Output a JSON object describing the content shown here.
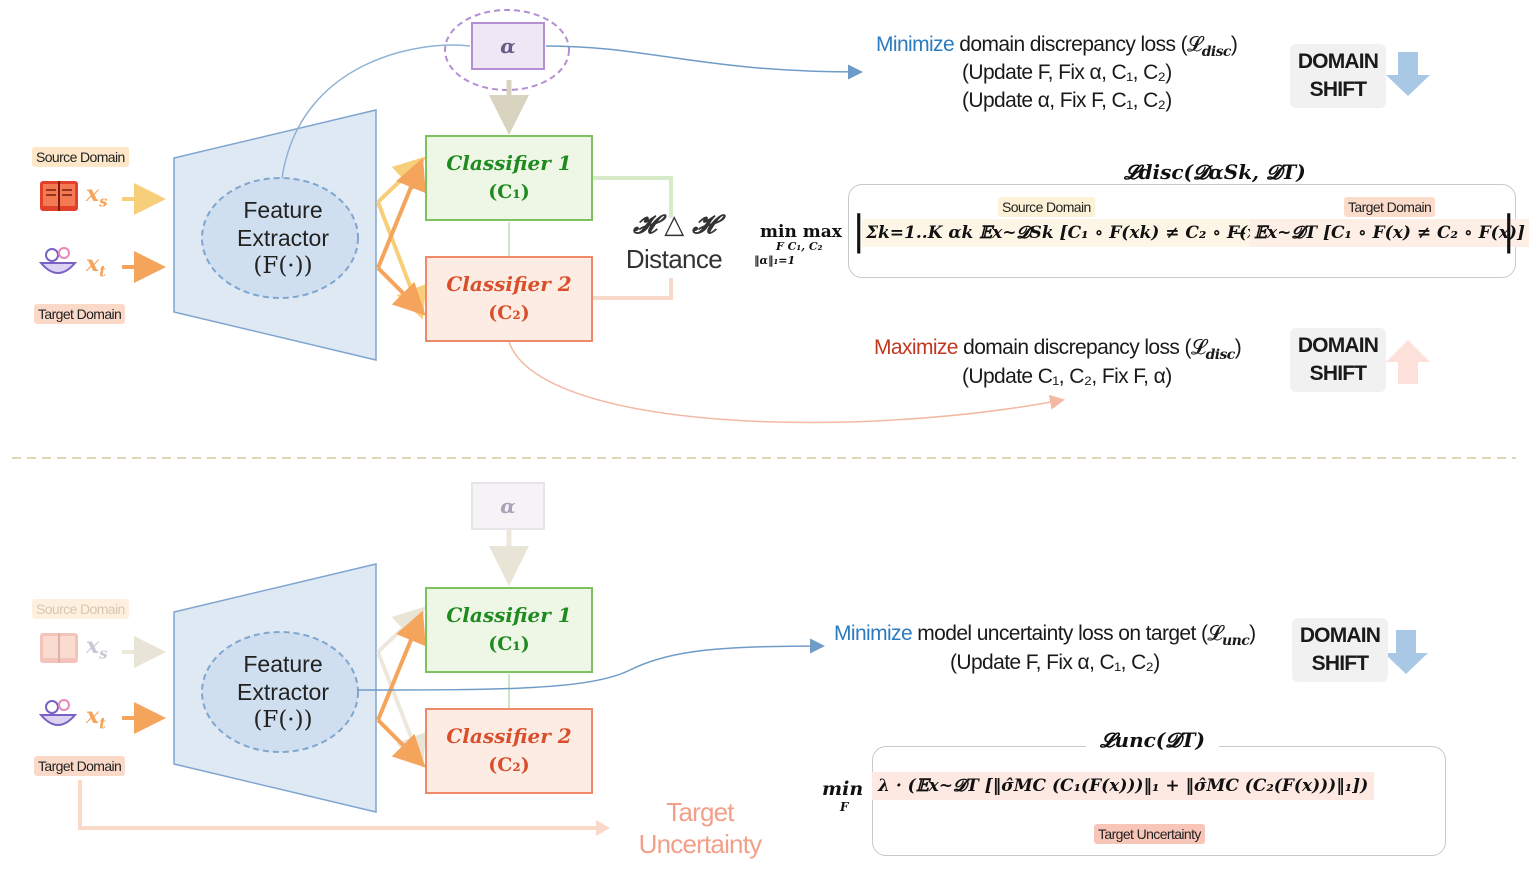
{
  "top": {
    "source_tag": "Source Domain",
    "target_tag": "Target Domain",
    "x_s": "x",
    "x_s_sub": "s",
    "x_t": "x",
    "x_t_sub": "t",
    "feature_extractor": [
      "Feature",
      "Extractor",
      "(F(·))"
    ],
    "alpha": "α",
    "classifier1_title": "Classifier 1",
    "classifier1_sym": "(C₁)",
    "classifier2_title": "Classifier 2",
    "classifier2_sym": "(C₂)",
    "h_distance_symbol": "𝓗 △ 𝓗",
    "h_distance_label": "Distance",
    "minimize_word": "Minimize",
    "minimize_rest": " domain discrepancy loss (𝓛",
    "disc_sub": "disc",
    "minimize_line2": "(Update F, Fix α, C₁, C₂)",
    "minimize_line3": "(Update α, Fix F, C₁, C₂)",
    "maximize_word": "Maximize",
    "maximize_rest": " domain discrepancy loss (𝓛",
    "maximize_line2": "(Update C₁, C₂, Fix F, α)",
    "domain_shift_1": [
      "DOMAIN",
      "SHIFT"
    ],
    "domain_shift_2": [
      "DOMAIN",
      "SHIFT"
    ],
    "ldisc_title": "𝓛disc(𝓓αSk, 𝓓T)",
    "formula_minmax": "min max",
    "formula_under": "F   C₁, C₂",
    "formula_constraint": "‖α‖₁=1",
    "formula_source": "Σk=1..K αk 𝔼x~𝓓Sk [C₁ ∘ F(xk) ≠ C₂ ∘ F(xk)]",
    "formula_minus": "−",
    "formula_target": "𝔼x~𝓓T [C₁ ∘ F(x) ≠ C₂ ∘ F(x)]",
    "formula_source_tag": "Source Domain",
    "formula_target_tag": "Target Domain"
  },
  "bottom": {
    "source_tag": "Source Domain",
    "target_tag": "Target Domain",
    "feature_extractor": [
      "Feature",
      "Extractor",
      "(F(·))"
    ],
    "alpha": "α",
    "classifier1_title": "Classifier 1",
    "classifier1_sym": "(C₁)",
    "classifier2_title": "Classifier 2",
    "classifier2_sym": "(C₂)",
    "minimize_word": "Minimize",
    "minimize_rest": " model uncertainty loss on target (𝓛",
    "unc_sub": "unc",
    "minimize_line2": "(Update F, Fix α, C₁, C₂)",
    "domain_shift": [
      "DOMAIN",
      "SHIFT"
    ],
    "lunc_title": "𝓛unc(𝓓T)",
    "formula_min": "min",
    "formula_min_sub": "F",
    "formula_body": "λ · (𝔼x~𝓓T [‖σ̂MC (C₁(F(x)))‖₁ + ‖σ̂MC (C₂(F(x)))‖₁])",
    "formula_tag": "Target Uncertainty",
    "target_uncertainty": [
      "Target",
      "Uncertainty"
    ]
  },
  "colors": {
    "blue_accent": "#2b7bc0",
    "red_accent": "#c0381f",
    "classifier1": "#1f8a1f",
    "classifier2": "#d94f2b",
    "extractor_fill": "#dfe9f4",
    "alpha_border": "#b48fd1"
  }
}
